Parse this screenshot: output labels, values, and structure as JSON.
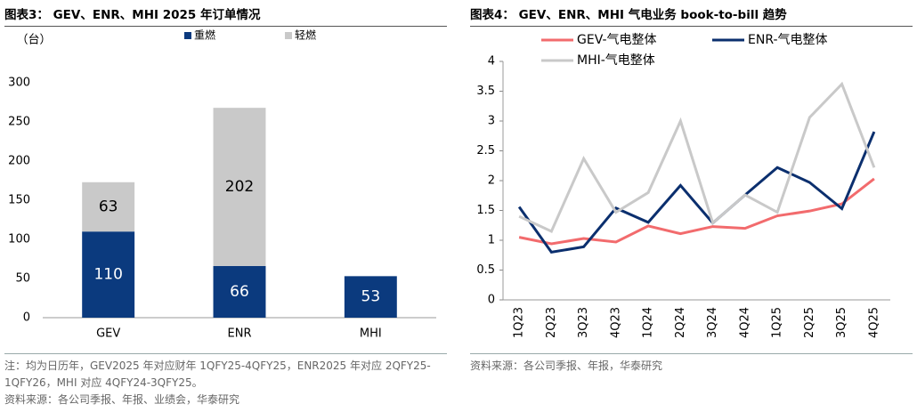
{
  "chart_data": [
    {
      "type": "bar",
      "stacked": true,
      "title": "图表3： GEV、ENR、MHI 2025 年订单情况",
      "y_label": "（台）",
      "categories": [
        "GEV",
        "ENR",
        "MHI"
      ],
      "series": [
        {
          "name": "重燃",
          "color": "#0b3a7e",
          "values": [
            110,
            66,
            53
          ]
        },
        {
          "name": "轻燃",
          "color": "#c9c9c9",
          "values": [
            63,
            202,
            null
          ]
        }
      ],
      "ylim": [
        0,
        300
      ],
      "yticks": [
        0,
        50,
        100,
        150,
        200,
        250,
        300
      ],
      "note": "注：均为日历年，GEV2025 年对应财年 1QFY25-4QFY25，ENR2025 年对应 2QFY25-1QFY26，MHI 对应 4QFY24-3QFY25。",
      "source": "资料来源：各公司季报、年报、业绩会，华泰研究"
    },
    {
      "type": "line",
      "title": "图表4： GEV、ENR、MHI 气电业务 book-to-bill 趋势",
      "categories": [
        "1Q23",
        "2Q23",
        "3Q23",
        "4Q23",
        "1Q24",
        "2Q24",
        "3Q24",
        "4Q24",
        "1Q25",
        "2Q25",
        "3Q25",
        "4Q25"
      ],
      "series": [
        {
          "name": "GEV-气电整体",
          "color": "#f26b6d",
          "values": [
            1.05,
            0.94,
            1.03,
            0.97,
            1.24,
            1.11,
            1.23,
            1.2,
            1.41,
            1.49,
            1.61,
            2.03
          ]
        },
        {
          "name": "ENR-气电整体",
          "color": "#0b2f6e",
          "values": [
            1.56,
            0.8,
            0.89,
            1.54,
            1.3,
            1.92,
            1.29,
            1.76,
            2.22,
            1.97,
            1.53,
            2.82
          ]
        },
        {
          "name": "MHI-气电整体",
          "color": "#c9c9c9",
          "values": [
            1.4,
            1.15,
            2.37,
            1.47,
            1.8,
            3.0,
            1.29,
            1.76,
            1.47,
            3.06,
            3.62,
            2.22
          ]
        }
      ],
      "ylim": [
        0,
        4
      ],
      "yticks": [
        0,
        0.5,
        1,
        1.5,
        2,
        2.5,
        3,
        3.5,
        4
      ],
      "source": "资料来源：各公司季报、年报，华泰研究"
    }
  ]
}
